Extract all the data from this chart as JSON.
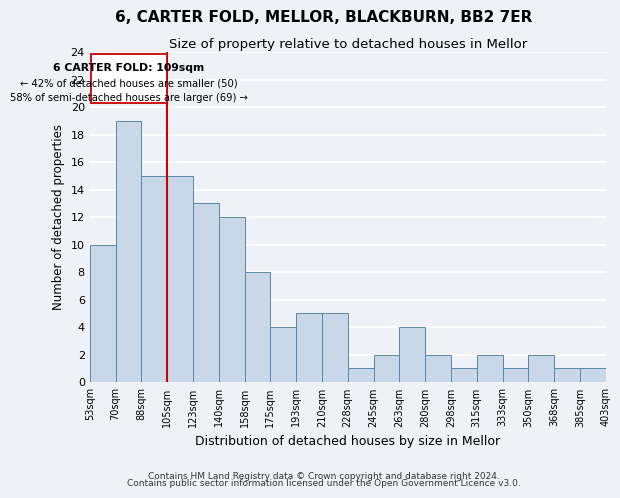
{
  "title1": "6, CARTER FOLD, MELLOR, BLACKBURN, BB2 7ER",
  "title2": "Size of property relative to detached houses in Mellor",
  "xlabel": "Distribution of detached houses by size in Mellor",
  "ylabel": "Number of detached properties",
  "bin_labels": [
    "53sqm",
    "70sqm",
    "88sqm",
    "105sqm",
    "123sqm",
    "140sqm",
    "158sqm",
    "175sqm",
    "193sqm",
    "210sqm",
    "228sqm",
    "245sqm",
    "263sqm",
    "280sqm",
    "298sqm",
    "315sqm",
    "333sqm",
    "350sqm",
    "368sqm",
    "385sqm",
    "403sqm"
  ],
  "bar_heights": [
    10,
    19,
    15,
    15,
    13,
    12,
    8,
    4,
    5,
    5,
    1,
    2,
    4,
    2,
    1,
    2,
    1,
    2,
    1,
    1
  ],
  "bar_color": "#c8d8e8",
  "bar_edge_color": "#5588aa",
  "vline_x": 3,
  "vline_color": "#cc0000",
  "annotation_title": "6 CARTER FOLD: 109sqm",
  "annotation_line1": "← 42% of detached houses are smaller (50)",
  "annotation_line2": "58% of semi-detached houses are larger (69) →",
  "annotation_box_color": "#ffffff",
  "annotation_box_edge": "#cc0000",
  "ylim": [
    0,
    24
  ],
  "yticks": [
    0,
    2,
    4,
    6,
    8,
    10,
    12,
    14,
    16,
    18,
    20,
    22,
    24
  ],
  "footer1": "Contains HM Land Registry data © Crown copyright and database right 2024.",
  "footer2": "Contains public sector information licensed under the Open Government Licence v3.0.",
  "background_color": "#eef2f6",
  "grid_color": "#ffffff",
  "title1_fontsize": 11,
  "title2_fontsize": 9.5,
  "xlabel_fontsize": 9,
  "ylabel_fontsize": 8.5,
  "footer_fontsize": 6.5,
  "tick_fontsize": 8,
  "xtick_fontsize": 7
}
